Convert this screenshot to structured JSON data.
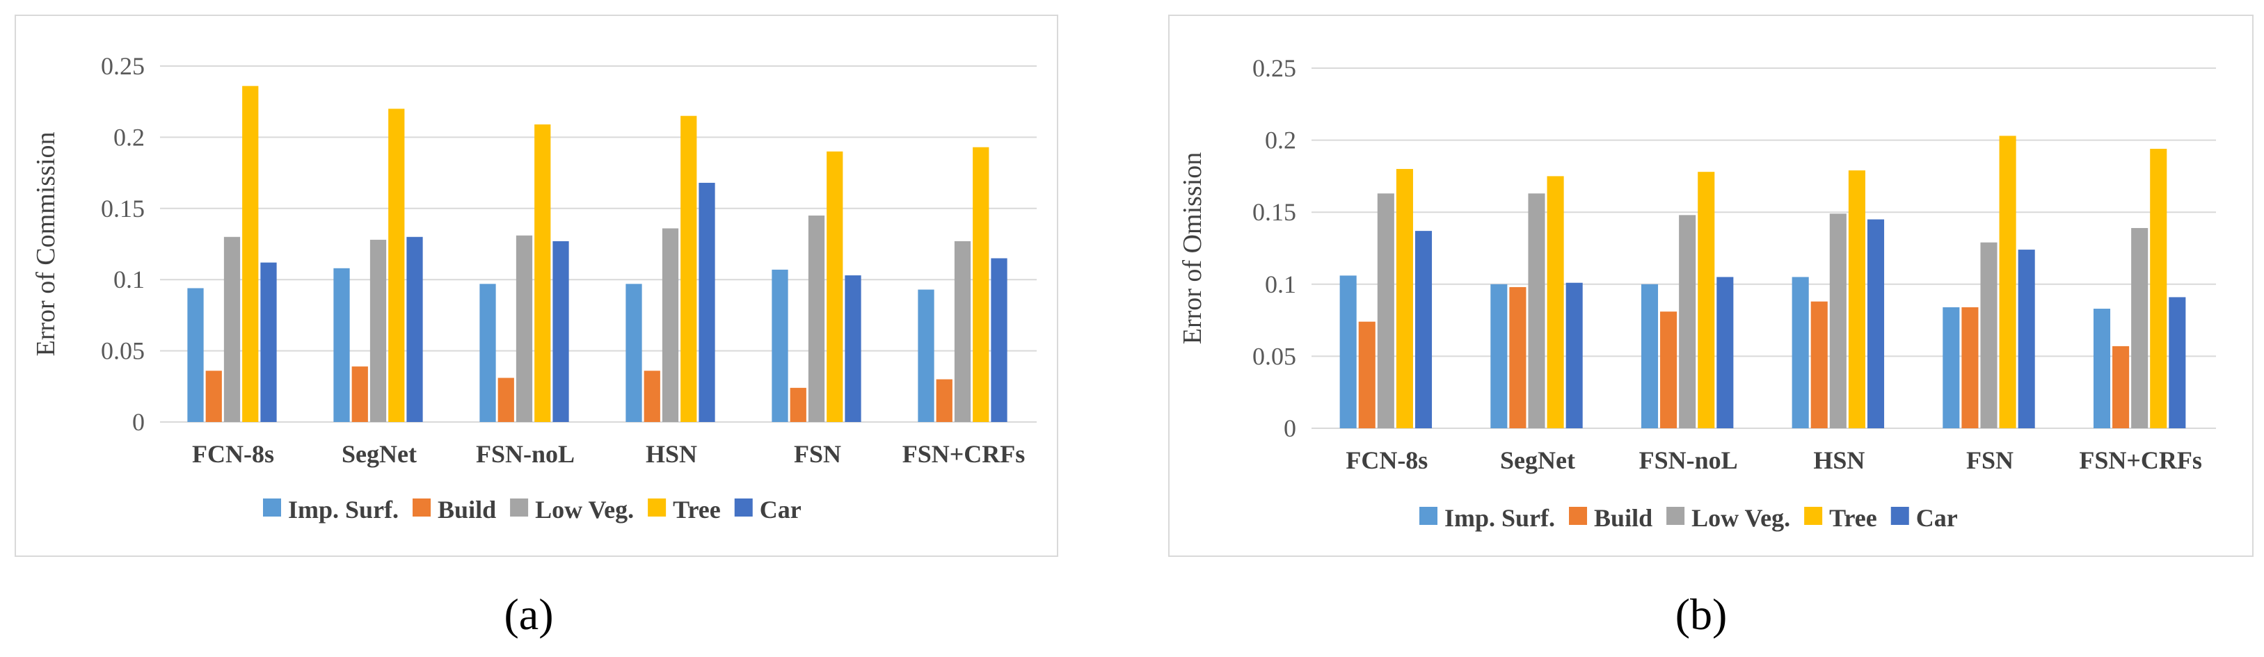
{
  "chart_data": [
    {
      "type": "bar",
      "ylabel": "Error of Commission",
      "xlabel": "",
      "ylim": [
        0,
        0.25
      ],
      "yticks": [
        "0",
        "0.05",
        "0.1",
        "0.15",
        "0.2",
        "0.25"
      ],
      "grid": true,
      "legend_position": "bottom",
      "caption": "(a)",
      "categories": [
        "FCN-8s",
        "SegNet",
        "FSN-noL",
        "HSN",
        "FSN",
        "FSN+CRFs"
      ],
      "series": [
        {
          "name": "Imp. Surf.",
          "color": "#5B9BD5",
          "values": [
            0.094,
            0.108,
            0.097,
            0.097,
            0.107,
            0.093
          ]
        },
        {
          "name": "Build",
          "color": "#ED7D31",
          "values": [
            0.036,
            0.039,
            0.031,
            0.036,
            0.024,
            0.03
          ]
        },
        {
          "name": "Low Veg.",
          "color": "#A5A5A5",
          "values": [
            0.13,
            0.128,
            0.131,
            0.136,
            0.145,
            0.127
          ]
        },
        {
          "name": "Tree",
          "color": "#FFC000",
          "values": [
            0.236,
            0.22,
            0.209,
            0.215,
            0.19,
            0.193
          ]
        },
        {
          "name": "Car",
          "color": "#4472C4",
          "values": [
            0.112,
            0.13,
            0.127,
            0.168,
            0.103,
            0.115
          ]
        }
      ]
    },
    {
      "type": "bar",
      "ylabel": "Error of Omission",
      "xlabel": "",
      "ylim": [
        0,
        0.25
      ],
      "yticks": [
        "0",
        "0.05",
        "0.1",
        "0.15",
        "0.2",
        "0.25"
      ],
      "grid": true,
      "legend_position": "bottom",
      "caption": "(b)",
      "categories": [
        "FCN-8s",
        "SegNet",
        "FSN-noL",
        "HSN",
        "FSN",
        "FSN+CRFs"
      ],
      "series": [
        {
          "name": "Imp. Surf.",
          "color": "#5B9BD5",
          "values": [
            0.106,
            0.1,
            0.1,
            0.105,
            0.084,
            0.083
          ]
        },
        {
          "name": "Build",
          "color": "#ED7D31",
          "values": [
            0.074,
            0.098,
            0.081,
            0.088,
            0.084,
            0.057
          ]
        },
        {
          "name": "Low Veg.",
          "color": "#A5A5A5",
          "values": [
            0.163,
            0.163,
            0.148,
            0.149,
            0.129,
            0.139
          ]
        },
        {
          "name": "Tree",
          "color": "#FFC000",
          "values": [
            0.18,
            0.175,
            0.178,
            0.179,
            0.203,
            0.194
          ]
        },
        {
          "name": "Car",
          "color": "#4472C4",
          "values": [
            0.137,
            0.101,
            0.105,
            0.145,
            0.124,
            0.091
          ]
        }
      ]
    }
  ]
}
